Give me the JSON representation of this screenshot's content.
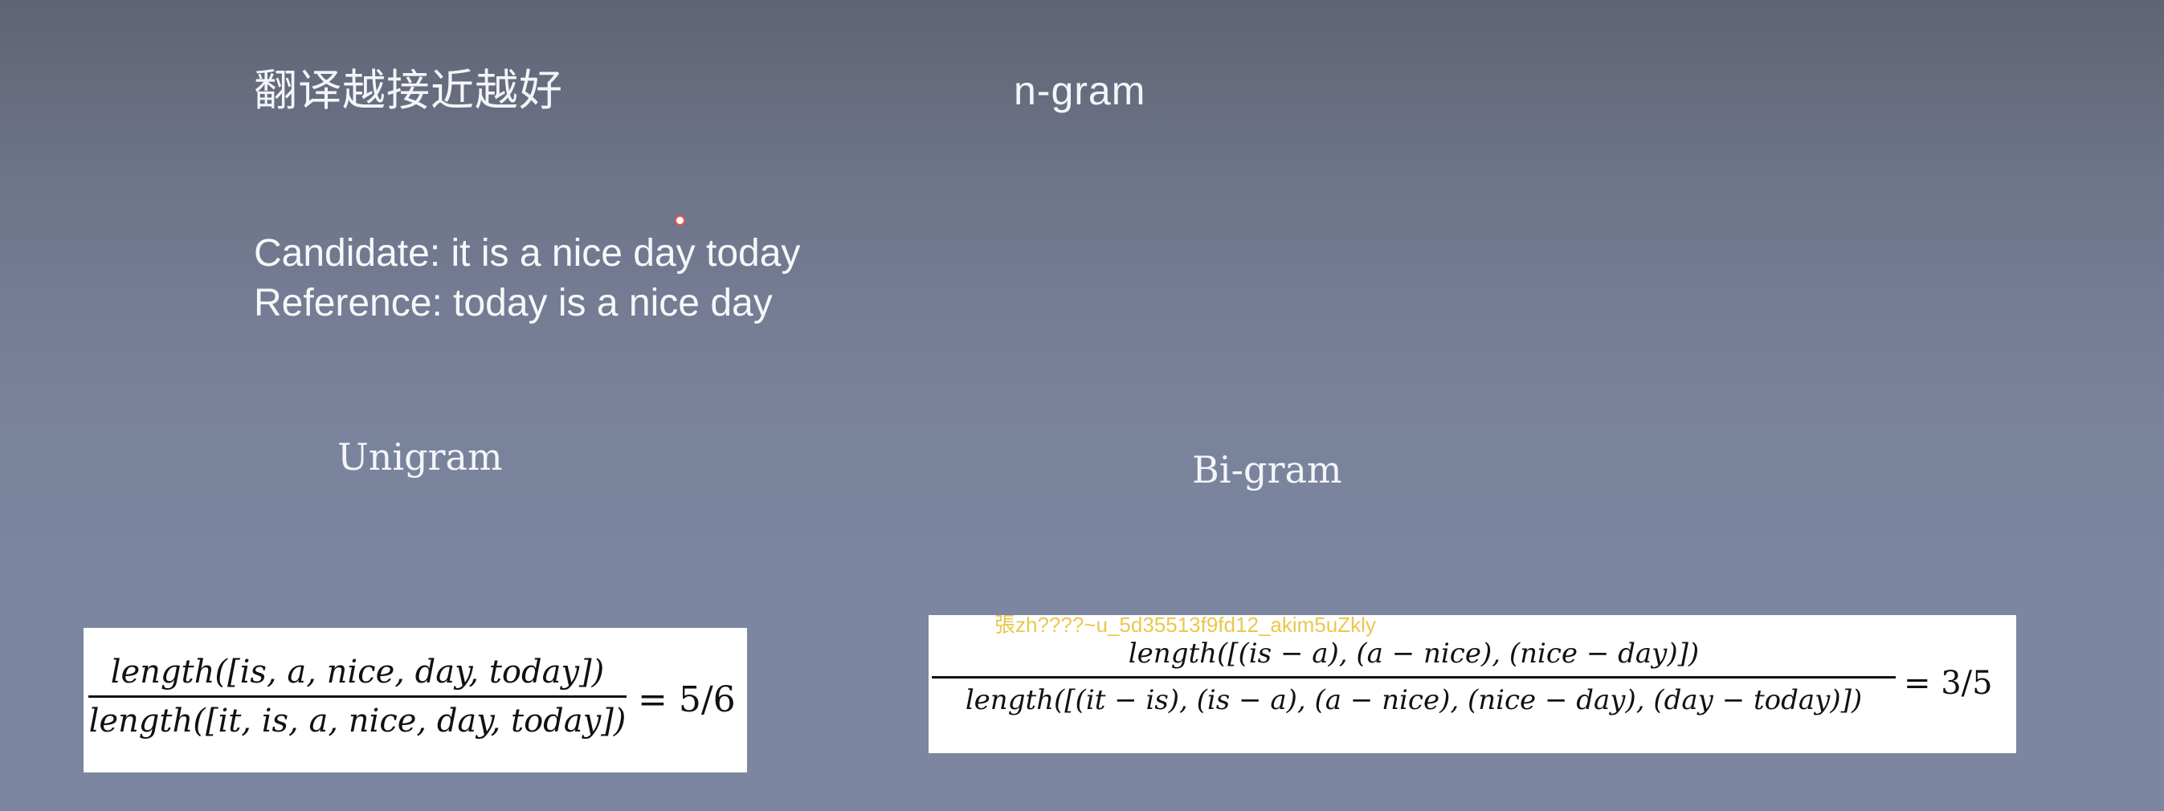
{
  "slide": {
    "title_cn": "翻译越接近越好",
    "title_ngram": "n-gram",
    "candidate": "Candidate: it is a nice day today",
    "reference": "Reference: today is a nice day",
    "unigram_label": "Unigram",
    "bigram_label": "Bi-gram"
  },
  "formulas": {
    "unigram": {
      "numerator": "length([is, a, nice, day, today])",
      "denominator": "length([it, is, a, nice, day, today])",
      "result": "= 5/6"
    },
    "bigram": {
      "numerator": "length([(is − a), (a − nice), (nice − day)])",
      "denominator": "length([(it − is), (is − a), (a − nice), (nice − day), (day − today)])",
      "result": "= 3/5"
    }
  },
  "watermark": "張zh????~u_5d35513f9fd12_akim5uZkly",
  "colors": {
    "background": "#7a829b",
    "text": "#ffffff",
    "watermark": "#e8c23a",
    "cursor": "#e0584b"
  }
}
